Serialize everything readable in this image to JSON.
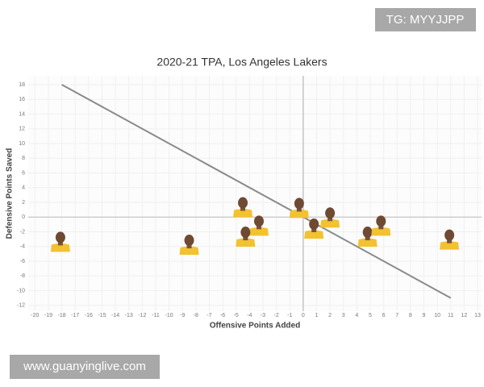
{
  "chart_data": {
    "type": "scatter",
    "title": "2020-21 TPA, Los Angeles Lakers",
    "x_label": "Offensive Points Added",
    "y_label": "Defensive Points Saved",
    "series": [
      {
        "color": "#f2c230",
        "x": [
          -18.1,
          -8.5,
          -4.5,
          -3.3,
          -4.3,
          -0.3,
          0.8,
          2.0,
          4.8,
          5.8,
          10.9
        ],
        "values": [
          -3.2,
          -3.6,
          1.5,
          -1.0,
          -2.5,
          1.4,
          -1.4,
          0.1,
          -2.5,
          -1.0,
          -2.9
        ]
      }
    ],
    "trend_line": {
      "color": "#8a8a8a",
      "x": [
        -18,
        11
      ],
      "y": [
        18,
        -11
      ]
    },
    "xlim": [
      -20.5,
      13.3
    ],
    "ylim": [
      -12.8,
      19.2
    ],
    "xticks": [
      -20,
      -19,
      -18,
      -17,
      -16,
      -15,
      -14,
      -13,
      -12,
      -11,
      -10,
      -9,
      -8,
      -7,
      -6,
      -5,
      -4,
      -3,
      -2,
      -1,
      0,
      1,
      2,
      3,
      4,
      5,
      6,
      7,
      8,
      9,
      10,
      11,
      12,
      13
    ],
    "yticks": [
      -12,
      -10,
      -8,
      -6,
      -4,
      -2,
      0,
      2,
      4,
      6,
      8,
      10,
      12,
      14,
      16,
      18
    ],
    "grid": true
  },
  "watermarks": {
    "top_right": "TG: MYYJJPP",
    "bottom_left": "www.guanyinglive.com"
  }
}
